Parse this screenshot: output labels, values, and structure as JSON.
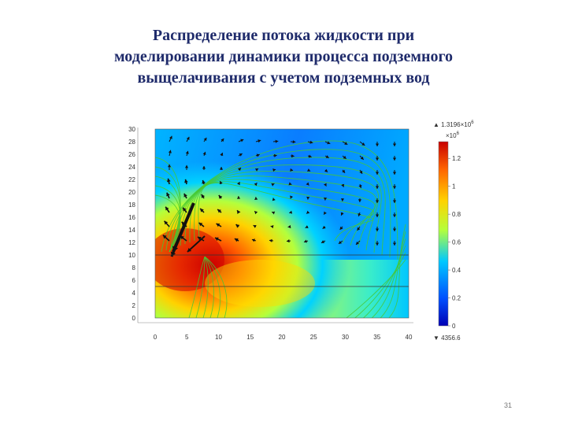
{
  "slide": {
    "title_lines": [
      "Распределение потока жидкости при",
      "моделировании динамики процесса подземного",
      "выщелачивания с учетом подземных вод"
    ],
    "page_number": "31"
  },
  "plot": {
    "x_ticks": [
      "0",
      "5",
      "10",
      "15",
      "20",
      "25",
      "30",
      "35",
      "40"
    ],
    "y_ticks": [
      "0",
      "2",
      "4",
      "6",
      "8",
      "10",
      "12",
      "14",
      "16",
      "18",
      "20",
      "22",
      "24",
      "26",
      "28",
      "30"
    ],
    "x_range": [
      0,
      40
    ],
    "y_range": [
      0,
      30
    ],
    "field_colors": [
      "#0000b4",
      "#0050ff",
      "#00c8ff",
      "#b4ff3c",
      "#ffd200",
      "#ff6400",
      "#c80000"
    ]
  },
  "colorbar": {
    "max_label": "▲ 1.3196×10",
    "max_exp": "6",
    "unit_label": "×10",
    "unit_exp": "6",
    "tick_labels": [
      "1.2",
      "1",
      "0.8",
      "0.6",
      "0.4",
      "0.2",
      "0"
    ],
    "min_label": "▼ 4356.6"
  }
}
